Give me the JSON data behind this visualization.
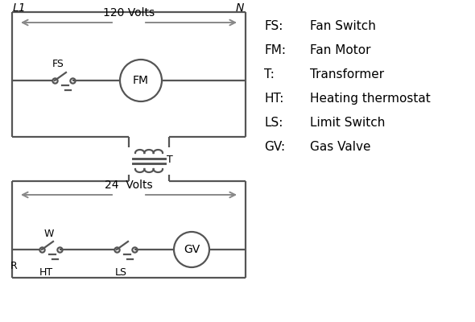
{
  "background_color": "#ffffff",
  "line_color": "#555555",
  "arrow_color": "#888888",
  "text_color": "#000000",
  "legend_items": [
    [
      "FS:",
      "Fan Switch"
    ],
    [
      "FM:",
      "Fan Motor"
    ],
    [
      "T:",
      "Transformer"
    ],
    [
      "HT:",
      "Heating thermostat"
    ],
    [
      "LS:",
      "Limit Switch"
    ],
    [
      "GV:",
      "Gas Valve"
    ]
  ],
  "figsize": [
    5.9,
    4.0
  ],
  "dpi": 100
}
